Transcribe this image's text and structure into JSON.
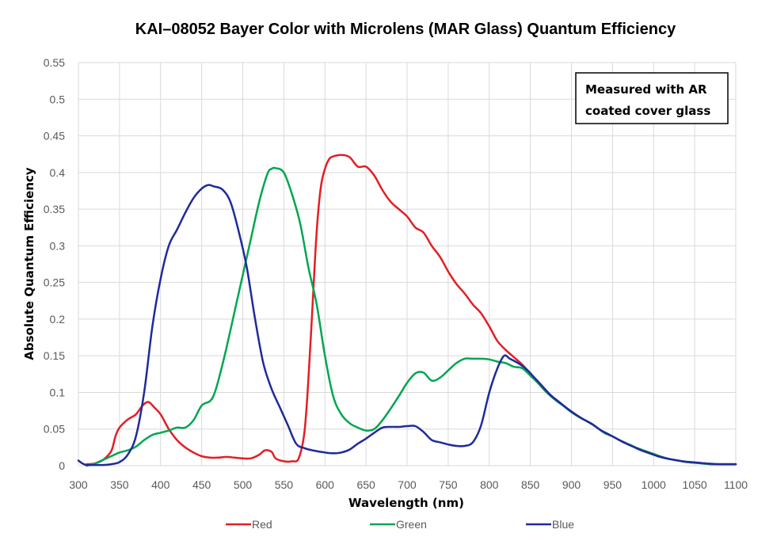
{
  "chart_data": {
    "type": "line",
    "title": "KAI–08052 Bayer Color with Microlens (MAR Glass) Quantum Efficiency",
    "xlabel": "Wavelength (nm)",
    "ylabel": "Absolute Quantum  Efficiency",
    "xlim": [
      300,
      1100
    ],
    "ylim": [
      0,
      0.55
    ],
    "xticks": [
      "300",
      "350",
      "400",
      "450",
      "500",
      "550",
      "600",
      "650",
      "700",
      "750",
      "800",
      "850",
      "900",
      "950",
      "1000",
      "1050",
      "1100"
    ],
    "yticks": [
      "0",
      "0.05",
      "0.1",
      "0.15",
      "0.2",
      "0.25",
      "0.3",
      "0.35",
      "0.4",
      "0.45",
      "0.5",
      "0.55"
    ],
    "grid": true,
    "legend": "bottom",
    "annotation": [
      "Measured with AR",
      "coated cover glass"
    ],
    "series": [
      {
        "name": "Red",
        "color": "#e31e24",
        "points": [
          [
            310,
            0.002
          ],
          [
            320,
            0.003
          ],
          [
            330,
            0.008
          ],
          [
            340,
            0.02
          ],
          [
            345,
            0.04
          ],
          [
            350,
            0.052
          ],
          [
            360,
            0.063
          ],
          [
            370,
            0.07
          ],
          [
            378,
            0.082
          ],
          [
            385,
            0.087
          ],
          [
            392,
            0.08
          ],
          [
            400,
            0.07
          ],
          [
            410,
            0.05
          ],
          [
            420,
            0.035
          ],
          [
            430,
            0.025
          ],
          [
            440,
            0.018
          ],
          [
            450,
            0.013
          ],
          [
            460,
            0.011
          ],
          [
            470,
            0.011
          ],
          [
            480,
            0.012
          ],
          [
            490,
            0.011
          ],
          [
            500,
            0.01
          ],
          [
            510,
            0.01
          ],
          [
            520,
            0.015
          ],
          [
            527,
            0.021
          ],
          [
            535,
            0.019
          ],
          [
            540,
            0.01
          ],
          [
            550,
            0.006
          ],
          [
            560,
            0.006
          ],
          [
            568,
            0.01
          ],
          [
            575,
            0.045
          ],
          [
            580,
            0.12
          ],
          [
            585,
            0.22
          ],
          [
            590,
            0.32
          ],
          [
            595,
            0.38
          ],
          [
            600,
            0.405
          ],
          [
            605,
            0.418
          ],
          [
            610,
            0.422
          ],
          [
            620,
            0.424
          ],
          [
            630,
            0.421
          ],
          [
            640,
            0.408
          ],
          [
            650,
            0.408
          ],
          [
            660,
            0.396
          ],
          [
            670,
            0.376
          ],
          [
            680,
            0.36
          ],
          [
            690,
            0.35
          ],
          [
            700,
            0.34
          ],
          [
            710,
            0.325
          ],
          [
            720,
            0.318
          ],
          [
            730,
            0.3
          ],
          [
            740,
            0.285
          ],
          [
            750,
            0.265
          ],
          [
            760,
            0.248
          ],
          [
            770,
            0.235
          ],
          [
            780,
            0.22
          ],
          [
            790,
            0.208
          ],
          [
            800,
            0.19
          ],
          [
            810,
            0.17
          ],
          [
            820,
            0.158
          ],
          [
            830,
            0.148
          ],
          [
            840,
            0.138
          ],
          [
            850,
            0.125
          ],
          [
            860,
            0.112
          ],
          [
            870,
            0.1
          ],
          [
            880,
            0.09
          ],
          [
            890,
            0.082
          ],
          [
            900,
            0.073
          ],
          [
            910,
            0.066
          ],
          [
            920,
            0.06
          ],
          [
            930,
            0.053
          ],
          [
            940,
            0.045
          ],
          [
            950,
            0.04
          ],
          [
            960,
            0.034
          ],
          [
            970,
            0.029
          ],
          [
            980,
            0.024
          ],
          [
            990,
            0.02
          ],
          [
            1000,
            0.016
          ],
          [
            1010,
            0.012
          ],
          [
            1020,
            0.009
          ],
          [
            1030,
            0.007
          ],
          [
            1040,
            0.005
          ],
          [
            1050,
            0.004
          ],
          [
            1060,
            0.003
          ],
          [
            1070,
            0.002
          ],
          [
            1080,
            0.002
          ],
          [
            1090,
            0.002
          ],
          [
            1100,
            0.002
          ]
        ]
      },
      {
        "name": "Green",
        "color": "#00a651",
        "points": [
          [
            310,
            0.0
          ],
          [
            320,
            0.003
          ],
          [
            330,
            0.008
          ],
          [
            340,
            0.013
          ],
          [
            350,
            0.018
          ],
          [
            360,
            0.021
          ],
          [
            370,
            0.026
          ],
          [
            380,
            0.035
          ],
          [
            390,
            0.042
          ],
          [
            400,
            0.045
          ],
          [
            410,
            0.048
          ],
          [
            420,
            0.052
          ],
          [
            430,
            0.052
          ],
          [
            440,
            0.062
          ],
          [
            450,
            0.082
          ],
          [
            460,
            0.088
          ],
          [
            465,
            0.097
          ],
          [
            470,
            0.115
          ],
          [
            480,
            0.16
          ],
          [
            490,
            0.21
          ],
          [
            500,
            0.26
          ],
          [
            510,
            0.31
          ],
          [
            520,
            0.36
          ],
          [
            530,
            0.398
          ],
          [
            535,
            0.405
          ],
          [
            540,
            0.406
          ],
          [
            550,
            0.4
          ],
          [
            560,
            0.37
          ],
          [
            570,
            0.33
          ],
          [
            580,
            0.27
          ],
          [
            590,
            0.22
          ],
          [
            600,
            0.15
          ],
          [
            610,
            0.095
          ],
          [
            620,
            0.07
          ],
          [
            630,
            0.058
          ],
          [
            640,
            0.052
          ],
          [
            650,
            0.048
          ],
          [
            660,
            0.05
          ],
          [
            670,
            0.062
          ],
          [
            680,
            0.078
          ],
          [
            690,
            0.095
          ],
          [
            700,
            0.113
          ],
          [
            710,
            0.126
          ],
          [
            720,
            0.127
          ],
          [
            730,
            0.116
          ],
          [
            740,
            0.12
          ],
          [
            750,
            0.13
          ],
          [
            760,
            0.14
          ],
          [
            770,
            0.146
          ],
          [
            780,
            0.146
          ],
          [
            790,
            0.146
          ],
          [
            800,
            0.145
          ],
          [
            810,
            0.142
          ],
          [
            820,
            0.14
          ],
          [
            830,
            0.135
          ],
          [
            840,
            0.133
          ],
          [
            850,
            0.123
          ],
          [
            860,
            0.112
          ],
          [
            870,
            0.1
          ],
          [
            880,
            0.09
          ],
          [
            890,
            0.082
          ],
          [
            900,
            0.073
          ],
          [
            910,
            0.066
          ],
          [
            920,
            0.06
          ],
          [
            930,
            0.053
          ],
          [
            940,
            0.045
          ],
          [
            950,
            0.04
          ],
          [
            960,
            0.034
          ],
          [
            970,
            0.029
          ],
          [
            980,
            0.024
          ],
          [
            990,
            0.02
          ],
          [
            1000,
            0.016
          ],
          [
            1010,
            0.012
          ],
          [
            1020,
            0.009
          ],
          [
            1030,
            0.007
          ],
          [
            1040,
            0.005
          ],
          [
            1050,
            0.004
          ],
          [
            1060,
            0.003
          ],
          [
            1070,
            0.002
          ],
          [
            1080,
            0.002
          ],
          [
            1090,
            0.002
          ],
          [
            1100,
            0.002
          ]
        ]
      },
      {
        "name": "Blue",
        "color": "#1f2a9b",
        "points": [
          [
            300,
            0.007
          ],
          [
            305,
            0.003
          ],
          [
            310,
            0.001
          ],
          [
            320,
            0.001
          ],
          [
            330,
            0.001
          ],
          [
            340,
            0.002
          ],
          [
            350,
            0.005
          ],
          [
            360,
            0.015
          ],
          [
            370,
            0.04
          ],
          [
            380,
            0.1
          ],
          [
            390,
            0.19
          ],
          [
            400,
            0.255
          ],
          [
            410,
            0.3
          ],
          [
            420,
            0.322
          ],
          [
            430,
            0.345
          ],
          [
            440,
            0.365
          ],
          [
            450,
            0.378
          ],
          [
            458,
            0.383
          ],
          [
            465,
            0.381
          ],
          [
            475,
            0.377
          ],
          [
            485,
            0.36
          ],
          [
            495,
            0.32
          ],
          [
            505,
            0.27
          ],
          [
            515,
            0.2
          ],
          [
            525,
            0.14
          ],
          [
            535,
            0.105
          ],
          [
            545,
            0.08
          ],
          [
            555,
            0.055
          ],
          [
            565,
            0.03
          ],
          [
            575,
            0.024
          ],
          [
            585,
            0.021
          ],
          [
            600,
            0.018
          ],
          [
            610,
            0.017
          ],
          [
            620,
            0.018
          ],
          [
            630,
            0.022
          ],
          [
            640,
            0.03
          ],
          [
            650,
            0.037
          ],
          [
            660,
            0.045
          ],
          [
            670,
            0.052
          ],
          [
            680,
            0.053
          ],
          [
            690,
            0.053
          ],
          [
            700,
            0.054
          ],
          [
            710,
            0.054
          ],
          [
            720,
            0.046
          ],
          [
            730,
            0.035
          ],
          [
            740,
            0.032
          ],
          [
            750,
            0.029
          ],
          [
            760,
            0.027
          ],
          [
            770,
            0.027
          ],
          [
            780,
            0.032
          ],
          [
            790,
            0.055
          ],
          [
            800,
            0.1
          ],
          [
            810,
            0.133
          ],
          [
            818,
            0.15
          ],
          [
            825,
            0.146
          ],
          [
            835,
            0.14
          ],
          [
            845,
            0.132
          ],
          [
            855,
            0.12
          ],
          [
            865,
            0.108
          ],
          [
            875,
            0.096
          ],
          [
            885,
            0.087
          ],
          [
            895,
            0.078
          ],
          [
            905,
            0.07
          ],
          [
            915,
            0.063
          ],
          [
            925,
            0.057
          ],
          [
            935,
            0.049
          ],
          [
            945,
            0.043
          ],
          [
            955,
            0.037
          ],
          [
            965,
            0.031
          ],
          [
            975,
            0.026
          ],
          [
            985,
            0.021
          ],
          [
            995,
            0.017
          ],
          [
            1005,
            0.013
          ],
          [
            1015,
            0.01
          ],
          [
            1025,
            0.008
          ],
          [
            1035,
            0.006
          ],
          [
            1045,
            0.005
          ],
          [
            1055,
            0.004
          ],
          [
            1065,
            0.003
          ],
          [
            1080,
            0.002
          ],
          [
            1100,
            0.002
          ]
        ]
      }
    ]
  }
}
